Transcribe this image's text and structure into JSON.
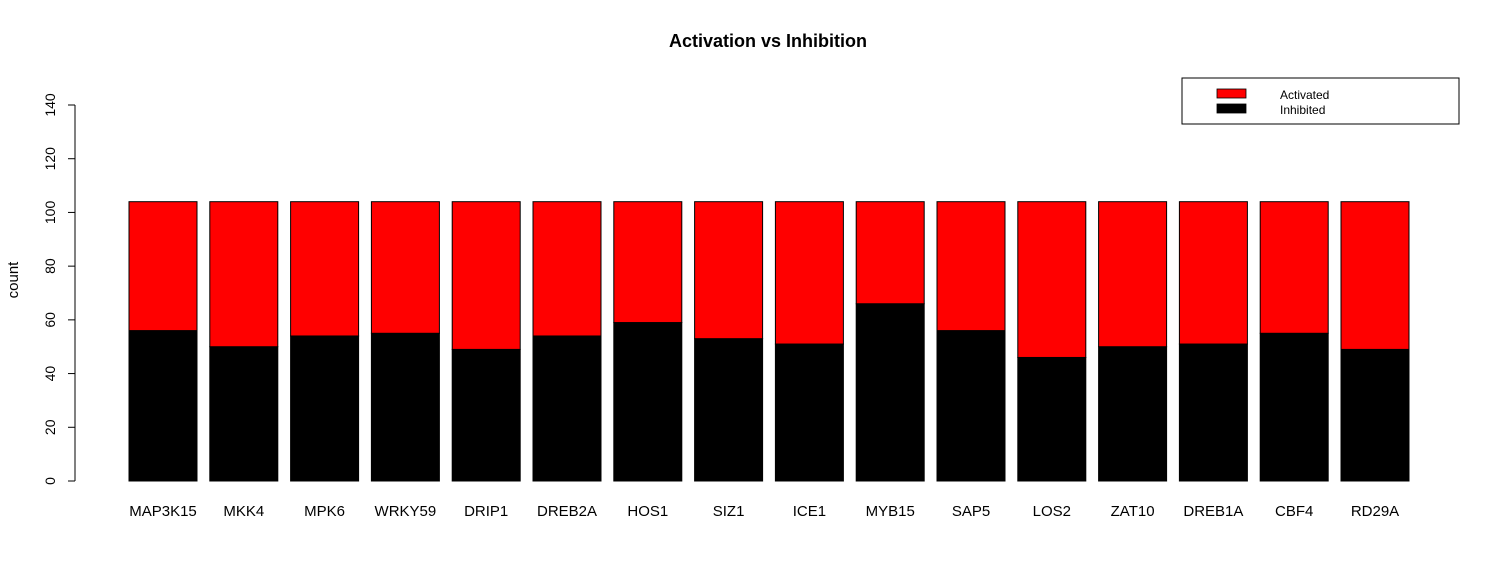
{
  "chart_data": {
    "type": "bar",
    "stacked": true,
    "title": "Activation vs Inhibition",
    "xlabel": "",
    "ylabel": "count",
    "ylim": [
      0,
      140
    ],
    "yticks": [
      0,
      20,
      40,
      60,
      80,
      100,
      120,
      140
    ],
    "grid": false,
    "legend_position": "top-right",
    "categories": [
      "MAP3K15",
      "MKK4",
      "MPK6",
      "WRKY59",
      "DRIP1",
      "DREB2A",
      "HOS1",
      "SIZ1",
      "ICE1",
      "MYB15",
      "SAP5",
      "LOS2",
      "ZAT10",
      "DREB1A",
      "CBF4",
      "RD29A"
    ],
    "series": [
      {
        "name": "Inhibited",
        "color": "#000000",
        "values": [
          56,
          50,
          54,
          55,
          49,
          54,
          59,
          53,
          51,
          66,
          56,
          46,
          50,
          51,
          55,
          49
        ]
      },
      {
        "name": "Activated",
        "color": "#ff0000",
        "values": [
          48,
          54,
          50,
          49,
          55,
          50,
          45,
          51,
          53,
          38,
          48,
          58,
          54,
          53,
          49,
          55
        ]
      }
    ],
    "legend": [
      {
        "label": "Activated",
        "color": "#ff0000"
      },
      {
        "label": "Inhibited",
        "color": "#000000"
      }
    ]
  }
}
